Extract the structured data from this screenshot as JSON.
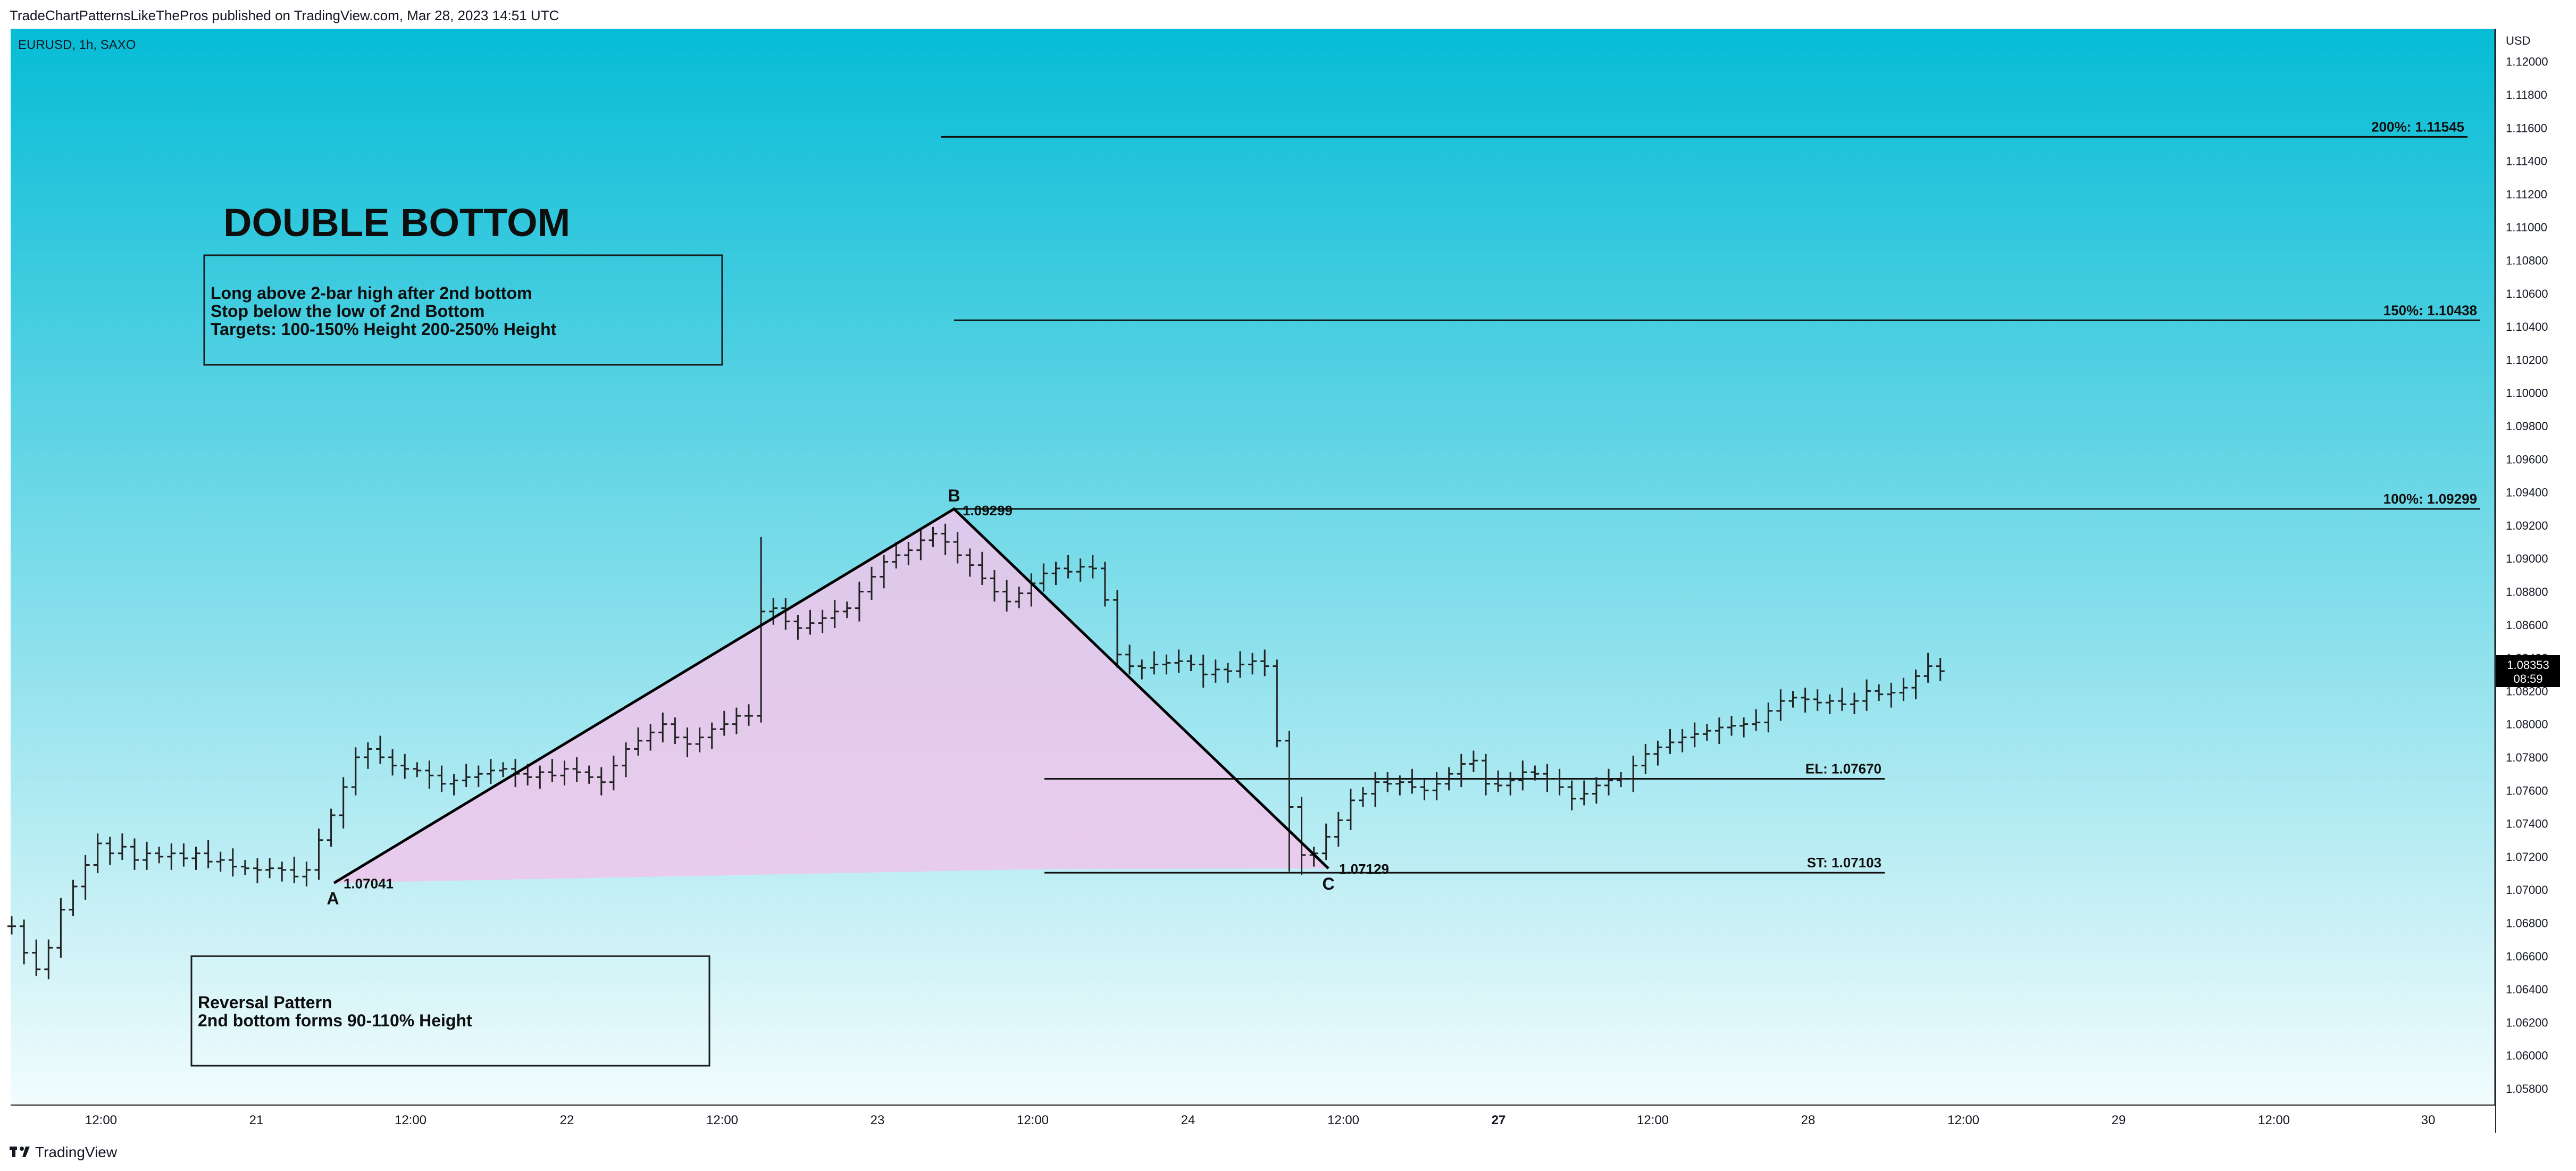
{
  "header": {
    "publisher_line": "TradeChartPatternsLikeThePros published on TradingView.com, Mar 28, 2023 14:51 UTC"
  },
  "symbol": {
    "label": "EURUSD, 1h, SAXO"
  },
  "footer": {
    "logo_text": "TradingView"
  },
  "colors": {
    "background_top": "#06BCD6",
    "background_bottom": "#F2FCFD",
    "pattern_fill": "#F0C6EB",
    "candles": "#222222",
    "price_tag_bg": "#000000"
  },
  "annotations": {
    "title": "DOUBLE BOTTOM",
    "box_top": [
      "Long above 2-bar high after 2nd bottom",
      "Stop below the low of 2nd Bottom",
      "Targets: 100-150% Height 200-250% Height"
    ],
    "box_bottom": [
      "Reversal Pattern",
      "2nd bottom forms 90-110% Height"
    ],
    "points": [
      {
        "label": "A",
        "value_label": "1.07041"
      },
      {
        "label": "B",
        "value_label": "1.09299"
      },
      {
        "label": "C",
        "value_label": "1.07129"
      }
    ],
    "levels": [
      {
        "label": "200%: 1.11545",
        "value": 1.11545
      },
      {
        "label": "150%: 1.10438",
        "value": 1.10438
      },
      {
        "label": "100%: 1.09299",
        "value": 1.09299
      },
      {
        "label": "EL: 1.07670",
        "value": 1.0767
      },
      {
        "label": "ST: 1.07103",
        "value": 1.07103
      }
    ]
  },
  "price_axis": {
    "currency": "USD",
    "last_price": "1.08353",
    "countdown": "08:59"
  },
  "chart_data": {
    "type": "candlestick",
    "title": "EURUSD, 1h, SAXO",
    "ylabel": "USD",
    "ylim": [
      1.0565,
      1.1225
    ],
    "y_ticks": [
      "1.05800",
      "1.06000",
      "1.06200",
      "1.06400",
      "1.06600",
      "1.06800",
      "1.07000",
      "1.07200",
      "1.07400",
      "1.07600",
      "1.07800",
      "1.08000",
      "1.08200",
      "1.08400",
      "1.08600",
      "1.08800",
      "1.09000",
      "1.09200",
      "1.09400",
      "1.09600",
      "1.09800",
      "1.10000",
      "1.10200",
      "1.10400",
      "1.10600",
      "1.10800",
      "1.11000",
      "1.11200",
      "1.11400",
      "1.11600",
      "1.11800",
      "1.12000"
    ],
    "x_ticks": [
      {
        "label": "12:00",
        "bold": false
      },
      {
        "label": "21",
        "bold": false
      },
      {
        "label": "12:00",
        "bold": false
      },
      {
        "label": "22",
        "bold": false
      },
      {
        "label": "12:00",
        "bold": false
      },
      {
        "label": "23",
        "bold": false
      },
      {
        "label": "12:00",
        "bold": false
      },
      {
        "label": "24",
        "bold": false
      },
      {
        "label": "12:00",
        "bold": false
      },
      {
        "label": "27",
        "bold": true
      },
      {
        "label": "12:00",
        "bold": false
      },
      {
        "label": "28",
        "bold": false
      },
      {
        "label": "12:00",
        "bold": false
      },
      {
        "label": "29",
        "bold": false
      },
      {
        "label": "12:00",
        "bold": false
      },
      {
        "label": "30",
        "bold": false
      }
    ],
    "pattern_points": [
      {
        "label": "A",
        "price": 1.07041
      },
      {
        "label": "B",
        "price": 1.09299
      },
      {
        "label": "C",
        "price": 1.07129
      }
    ],
    "price_path": [
      1.0678,
      1.0662,
      1.0652,
      1.0665,
      1.0688,
      1.0702,
      1.0715,
      1.0728,
      1.0722,
      1.0726,
      1.0718,
      1.0722,
      1.072,
      1.0722,
      1.0719,
      1.0722,
      1.0717,
      1.0718,
      1.0714,
      1.0713,
      1.0712,
      1.0713,
      1.0712,
      1.0708,
      1.0712,
      1.073,
      1.0745,
      1.0762,
      1.078,
      1.0785,
      1.078,
      1.0775,
      1.0773,
      1.0772,
      1.0769,
      1.0764,
      1.0766,
      1.0768,
      1.077,
      1.0772,
      1.0773,
      1.077,
      1.0768,
      1.0771,
      1.0769,
      1.0773,
      1.0771,
      1.0768,
      1.0765,
      1.0775,
      1.0785,
      1.079,
      1.0795,
      1.08,
      1.0792,
      1.0788,
      1.0792,
      1.0797,
      1.08,
      1.0805,
      1.0805,
      1.0868,
      1.087,
      1.0862,
      1.0858,
      1.0861,
      1.0864,
      1.0868,
      1.087,
      1.088,
      1.0889,
      1.0898,
      1.0902,
      1.0905,
      1.0911,
      1.0915,
      1.091,
      1.0902,
      1.0896,
      1.0888,
      1.088,
      1.0874,
      1.0879,
      1.0885,
      1.0891,
      1.0894,
      1.0892,
      1.0895,
      1.0894,
      1.0875,
      1.0842,
      1.0835,
      1.0834,
      1.0836,
      1.0837,
      1.0838,
      1.0836,
      1.083,
      1.0833,
      1.0832,
      1.0836,
      1.0838,
      1.0835,
      1.079,
      1.075,
      1.0721,
      1.0722,
      1.0732,
      1.0742,
      1.0754,
      1.0758,
      1.0765,
      1.0764,
      1.0765,
      1.0762,
      1.076,
      1.0764,
      1.077,
      1.0776,
      1.0778,
      1.0764,
      1.0763,
      1.0766,
      1.0771,
      1.077,
      1.0767,
      1.0762,
      1.0755,
      1.0758,
      1.0763,
      1.0766,
      1.0767,
      1.0775,
      1.0782,
      1.0786,
      1.0789,
      1.0792,
      1.0794,
      1.0796,
      1.0798,
      1.0799,
      1.08,
      1.0801,
      1.0808,
      1.0814,
      1.0816,
      1.0815,
      1.0813,
      1.0814,
      1.0812,
      1.0814,
      1.082,
      1.0818,
      1.0819,
      1.0822,
      1.0829,
      1.0835,
      1.0832
    ]
  }
}
